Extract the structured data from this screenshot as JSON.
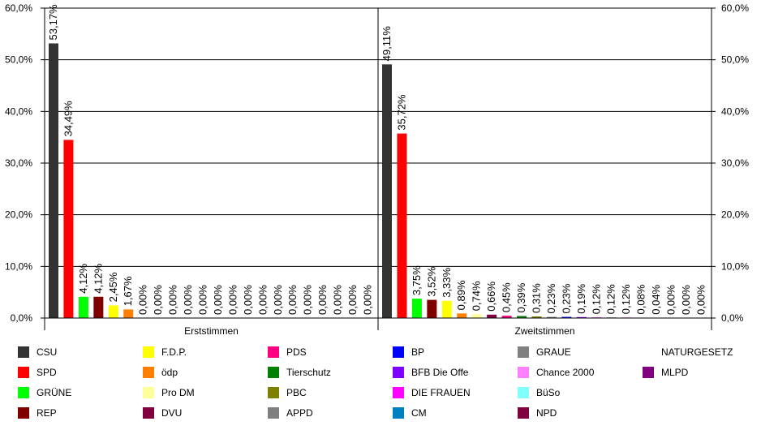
{
  "chart_data": {
    "type": "bar",
    "ylim": [
      0,
      60
    ],
    "y_ticks": [
      "0,0%",
      "10,0%",
      "20,0%",
      "30,0%",
      "40,0%",
      "50,0%",
      "60,0%"
    ],
    "grid": true,
    "legend_position": "bottom",
    "parties": [
      {
        "name": "CSU",
        "color": "#333333"
      },
      {
        "name": "SPD",
        "color": "#ff0000"
      },
      {
        "name": "GRÜNE",
        "color": "#00ff00"
      },
      {
        "name": "REP",
        "color": "#800000"
      },
      {
        "name": "F.D.P.",
        "color": "#ffff00"
      },
      {
        "name": "ödp",
        "color": "#ff8000"
      },
      {
        "name": "Pro DM",
        "color": "#ffff99"
      },
      {
        "name": "DVU",
        "color": "#800040"
      },
      {
        "name": "PDS",
        "color": "#ff0080"
      },
      {
        "name": "Tierschutz",
        "color": "#008000"
      },
      {
        "name": "PBC",
        "color": "#808000"
      },
      {
        "name": "APPD",
        "color": "#808080"
      },
      {
        "name": "BP",
        "color": "#0000ff"
      },
      {
        "name": "BFB Die Offe",
        "color": "#8000ff"
      },
      {
        "name": "DIE FRAUEN",
        "color": "#ff00ff"
      },
      {
        "name": "CM",
        "color": "#0080c0"
      },
      {
        "name": "GRAUE",
        "color": "#808080"
      },
      {
        "name": "Chance 2000",
        "color": "#ff80ff"
      },
      {
        "name": "BüSo",
        "color": "#80ffff"
      },
      {
        "name": "NPD",
        "color": "#800040"
      },
      {
        "name": "NATURGESETZ",
        "color": ""
      },
      {
        "name": "MLPD",
        "color": "#800080"
      }
    ],
    "groups": [
      {
        "label": "Erststimmen",
        "bars": [
          {
            "value": 53.17,
            "label": "53,17%",
            "party": 0
          },
          {
            "value": 34.49,
            "label": "34,49%",
            "party": 1
          },
          {
            "value": 4.12,
            "label": "4,12%",
            "party": 2
          },
          {
            "value": 4.12,
            "label": "4,12%",
            "party": 3
          },
          {
            "value": 2.45,
            "label": "2,45%",
            "party": 4
          },
          {
            "value": 1.67,
            "label": "1,67%",
            "party": 5
          },
          {
            "value": 0.0,
            "label": "0,00%",
            "party": -1
          },
          {
            "value": 0.0,
            "label": "0,00%",
            "party": -1
          },
          {
            "value": 0.0,
            "label": "0,00%",
            "party": -1
          },
          {
            "value": 0.0,
            "label": "0,00%",
            "party": -1
          },
          {
            "value": 0.0,
            "label": "0,00%",
            "party": -1
          },
          {
            "value": 0.0,
            "label": "0,00%",
            "party": -1
          },
          {
            "value": 0.0,
            "label": "0,00%",
            "party": -1
          },
          {
            "value": 0.0,
            "label": "0,00%",
            "party": -1
          },
          {
            "value": 0.0,
            "label": "0,00%",
            "party": -1
          },
          {
            "value": 0.0,
            "label": "0,00%",
            "party": -1
          },
          {
            "value": 0.0,
            "label": "0,00%",
            "party": -1
          },
          {
            "value": 0.0,
            "label": "0,00%",
            "party": -1
          },
          {
            "value": 0.0,
            "label": "0,00%",
            "party": -1
          },
          {
            "value": 0.0,
            "label": "0,00%",
            "party": -1
          },
          {
            "value": 0.0,
            "label": "0,00%",
            "party": -1
          },
          {
            "value": 0.0,
            "label": "0,00%",
            "party": -1
          }
        ]
      },
      {
        "label": "Zweitstimmen",
        "bars": [
          {
            "value": 49.11,
            "label": "49,11%",
            "party": 0
          },
          {
            "value": 35.72,
            "label": "35,72%",
            "party": 1
          },
          {
            "value": 3.75,
            "label": "3,75%",
            "party": 2
          },
          {
            "value": 3.52,
            "label": "3,52%",
            "party": 3
          },
          {
            "value": 3.33,
            "label": "3,33%",
            "party": 4
          },
          {
            "value": 0.89,
            "label": "0,89%",
            "party": 5
          },
          {
            "value": 0.74,
            "label": "0,74%",
            "party": 6
          },
          {
            "value": 0.66,
            "label": "0,66%",
            "party": 7
          },
          {
            "value": 0.45,
            "label": "0,45%",
            "party": 8
          },
          {
            "value": 0.39,
            "label": "0,39%",
            "party": 9
          },
          {
            "value": 0.31,
            "label": "0,31%",
            "party": 10
          },
          {
            "value": 0.23,
            "label": "0,23%",
            "party": 11
          },
          {
            "value": 0.23,
            "label": "0,23%",
            "party": 12
          },
          {
            "value": 0.19,
            "label": "0,19%",
            "party": 13
          },
          {
            "value": 0.12,
            "label": "0,12%",
            "party": 14
          },
          {
            "value": 0.12,
            "label": "0,12%",
            "party": 16
          },
          {
            "value": 0.12,
            "label": "0,12%",
            "party": 17
          },
          {
            "value": 0.08,
            "label": "0,08%",
            "party": 18
          },
          {
            "value": 0.04,
            "label": "0,04%",
            "party": 19
          },
          {
            "value": 0.0,
            "label": "0,00%",
            "party": -1
          },
          {
            "value": 0.0,
            "label": "0,00%",
            "party": -1
          },
          {
            "value": 0.0,
            "label": "0,00%",
            "party": -1
          }
        ]
      }
    ]
  }
}
